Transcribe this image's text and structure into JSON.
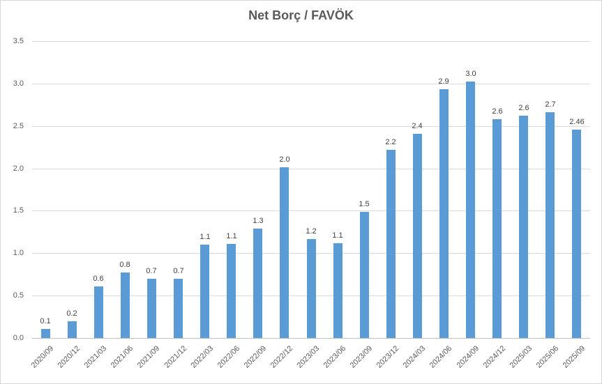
{
  "chart_data": {
    "type": "bar",
    "title": "Net Borç / FAVÖK",
    "categories": [
      "2020/09",
      "2020/12",
      "2021/03",
      "2021/06",
      "2021/09",
      "2021/12",
      "2022/03",
      "2022/06",
      "2022/09",
      "2022/12",
      "2023/03",
      "2023/06",
      "2023/09",
      "2023/12",
      "2024/03",
      "2024/06",
      "2024/09",
      "2024/12",
      "2025/03",
      "2025/06",
      "2025/09"
    ],
    "values": [
      0.1,
      0.2,
      0.6,
      0.8,
      0.7,
      0.7,
      1.1,
      1.1,
      1.3,
      2.0,
      1.2,
      1.1,
      1.5,
      2.2,
      2.4,
      2.9,
      3.0,
      2.6,
      2.6,
      2.7,
      2.46
    ],
    "data_labels": [
      "0.1",
      "0.2",
      "0.6",
      "0.8",
      "0.7",
      "0.7",
      "1.1",
      "1.1",
      "1.3",
      "2.0",
      "1.2",
      "1.1",
      "1.5",
      "2.2",
      "2.4",
      "2.9",
      "3.0",
      "2.6",
      "2.6",
      "2.7",
      "2.46"
    ],
    "values_plotted": [
      0.11,
      0.2,
      0.61,
      0.77,
      0.7,
      0.7,
      1.1,
      1.11,
      1.29,
      2.01,
      1.17,
      1.12,
      1.49,
      2.22,
      2.41,
      2.93,
      3.02,
      2.58,
      2.62,
      2.66,
      2.46
    ],
    "xlabel": "",
    "ylabel": "",
    "ylim": [
      0,
      3.5
    ],
    "ytick_step": 0.5,
    "yticks": [
      "0.0",
      "0.5",
      "1.0",
      "1.5",
      "2.0",
      "2.5",
      "3.0",
      "3.5"
    ],
    "grid": true,
    "legend_position": "none",
    "bar_color": "#5b9bd5",
    "gridline_color": "#d9d9d9",
    "axis_line_color": "#bfbfbf",
    "tick_label_color": "#595959",
    "data_label_color": "#404040",
    "title_color": "#595959",
    "background_color": "#ffffff",
    "border_color": "#d6d6d6"
  }
}
